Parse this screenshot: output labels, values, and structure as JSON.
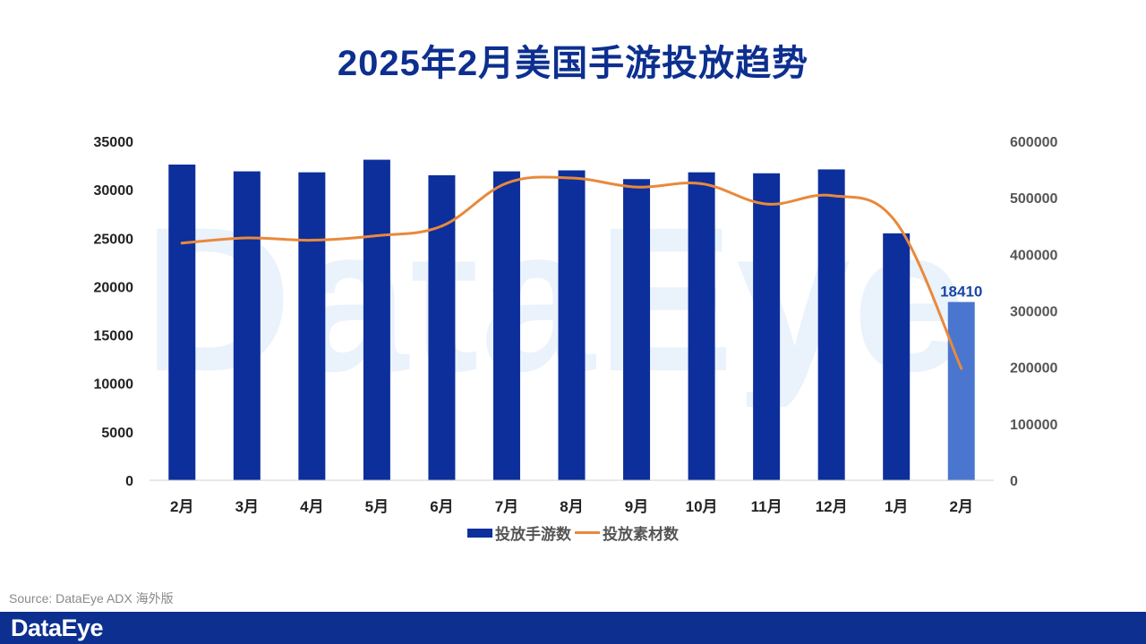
{
  "title": "2025年2月美国手游投放趋势",
  "watermark_text": "DataEye",
  "source": "Source: DataEye ADX 海外版",
  "logo": "DataEye",
  "colors": {
    "bar": "#0d2f9b",
    "bar_highlight": "#4a76cf",
    "line": "#e8893c",
    "title": "#0d2f8f",
    "footer": "#0d2f8f",
    "label_highlight": "#1a47a8"
  },
  "chart_data": {
    "type": "bar",
    "title": "2025年2月美国手游投放趋势",
    "categories": [
      "2月",
      "3月",
      "4月",
      "5月",
      "6月",
      "7月",
      "8月",
      "9月",
      "10月",
      "11月",
      "12月",
      "1月",
      "2月"
    ],
    "series": [
      {
        "name": "投放手游数",
        "type": "bar",
        "axis": "left",
        "values": [
          32600,
          31900,
          31800,
          33100,
          31500,
          31900,
          32000,
          31100,
          31800,
          31700,
          32100,
          25500,
          18410
        ],
        "highlight_index": 12,
        "data_labels": [
          {
            "index": 12,
            "text": "18410"
          }
        ]
      },
      {
        "name": "投放素材数",
        "type": "line",
        "axis": "right",
        "values": [
          420000,
          429000,
          425000,
          433000,
          450000,
          526000,
          535000,
          519000,
          525000,
          489000,
          504000,
          456000,
          198000
        ]
      }
    ],
    "y_left": {
      "min": 0,
      "max": 35000,
      "ticks": [
        "0",
        "5000",
        "10000",
        "15000",
        "20000",
        "25000",
        "30000",
        "35000"
      ]
    },
    "y_right": {
      "min": 0,
      "max": 600000,
      "ticks": [
        "0",
        "100000",
        "200000",
        "300000",
        "400000",
        "500000",
        "600000"
      ]
    },
    "grid": false,
    "legend": "bottom-center",
    "xlabel": "",
    "ylabel": ""
  }
}
